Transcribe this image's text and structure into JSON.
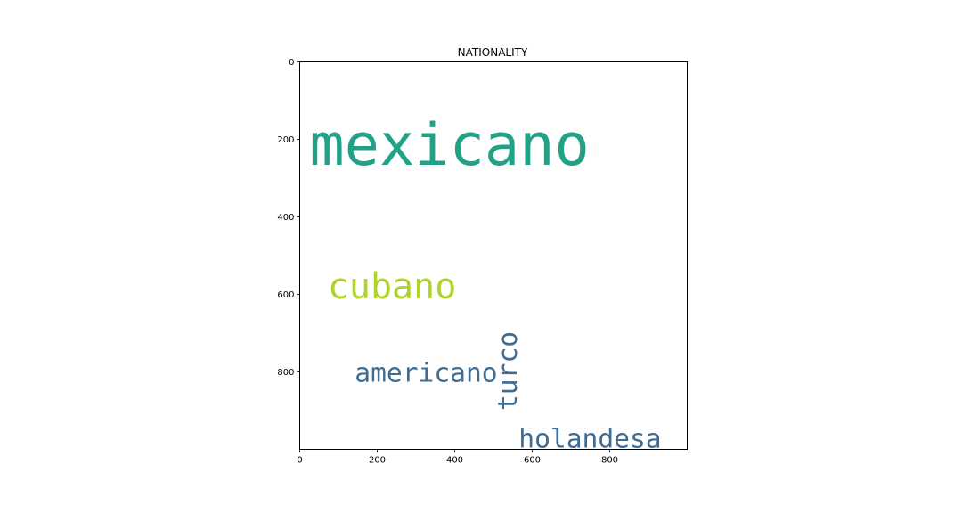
{
  "chart_data": {
    "type": "wordcloud",
    "title": "NATIONALITY",
    "xlim": [
      0,
      1000
    ],
    "ylim": [
      1000,
      0
    ],
    "x_ticks": [
      0,
      200,
      400,
      600,
      800
    ],
    "y_ticks": [
      0,
      200,
      400,
      600,
      800
    ],
    "grid": false,
    "words": [
      {
        "text": "mexicano",
        "x": 25,
        "y": 265,
        "size": 150,
        "rotation": 0,
        "color": "#21a185"
      },
      {
        "text": "cubano",
        "x": 72,
        "y": 610,
        "size": 92,
        "rotation": 0,
        "color": "#add42a"
      },
      {
        "text": "americano",
        "x": 142,
        "y": 825,
        "size": 68,
        "rotation": 0,
        "color": "#3f6c93"
      },
      {
        "text": "turco",
        "x": 560,
        "y": 900,
        "size": 68,
        "rotation": -90,
        "color": "#3f6c93"
      },
      {
        "text": "holandesa",
        "x": 565,
        "y": 995,
        "size": 68,
        "rotation": 0,
        "color": "#3f6c93"
      }
    ]
  }
}
